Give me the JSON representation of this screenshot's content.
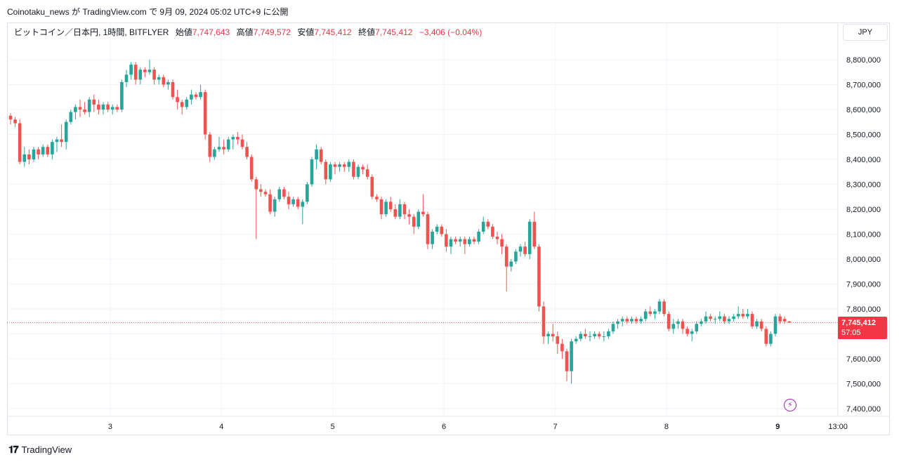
{
  "caption": "Coinotaku_news が TradingView.com で 9月 09, 2024 05:02 UTC+9 に公開",
  "legend": {
    "symbol": "ビットコイン／日本円, 1時間, BITFLYER",
    "open_label": "始値",
    "open": "7,747,643",
    "high_label": "高値",
    "high": "7,749,572",
    "low_label": "安値",
    "low": "7,745,412",
    "close_label": "終値",
    "close": "7,745,412",
    "change": "−3,406 (−0.04%)"
  },
  "currency": "JPY",
  "price_tag": {
    "price": "7,745,412",
    "countdown": "57:05"
  },
  "footer": {
    "brand": "TradingView"
  },
  "colors": {
    "up": "#26a69a",
    "down": "#ef5350",
    "grid": "#f0f3fa",
    "text": "#131722"
  },
  "chart_data": {
    "type": "candlestick",
    "interval": "1h",
    "ylim": [
      7360000,
      8870000
    ],
    "y_ticks": [
      7400000,
      7500000,
      7600000,
      7700000,
      7800000,
      7900000,
      8000000,
      8100000,
      8200000,
      8300000,
      8400000,
      8500000,
      8600000,
      8700000,
      8800000
    ],
    "y_tick_labels": [
      "7,400,000",
      "7,500,000",
      "7,600,000",
      "7,700,000",
      "7,800,000",
      "7,900,000",
      "8,000,000",
      "8,100,000",
      "8,200,000",
      "8,300,000",
      "8,400,000",
      "8,500,000",
      "8,600,000",
      "8,700,000",
      "8,800,000"
    ],
    "x_ticks": [
      {
        "label": "3",
        "bar": 21.5,
        "bold": false
      },
      {
        "label": "4",
        "bar": 45.5,
        "bold": false
      },
      {
        "label": "5",
        "bar": 69.5,
        "bold": false
      },
      {
        "label": "6",
        "bar": 93.5,
        "bold": false
      },
      {
        "label": "7",
        "bar": 117.5,
        "bold": false
      },
      {
        "label": "8",
        "bar": 141.5,
        "bold": false
      },
      {
        "label": "9",
        "bar": 165.5,
        "bold": true
      },
      {
        "label": "13:00",
        "bar": 178.5,
        "bold": false
      }
    ],
    "last_price": 7745412,
    "ohlc": [
      [
        8575000,
        8585000,
        8540000,
        8560000
      ],
      [
        8560000,
        8570000,
        8530000,
        8545000
      ],
      [
        8545000,
        8560000,
        8380000,
        8390000
      ],
      [
        8390000,
        8450000,
        8370000,
        8420000
      ],
      [
        8420000,
        8440000,
        8380000,
        8400000
      ],
      [
        8400000,
        8450000,
        8390000,
        8440000
      ],
      [
        8440000,
        8450000,
        8400000,
        8420000
      ],
      [
        8420000,
        8460000,
        8410000,
        8450000
      ],
      [
        8450000,
        8460000,
        8410000,
        8420000
      ],
      [
        8420000,
        8480000,
        8400000,
        8470000
      ],
      [
        8470000,
        8490000,
        8430000,
        8480000
      ],
      [
        8480000,
        8540000,
        8450000,
        8470000
      ],
      [
        8470000,
        8560000,
        8440000,
        8550000
      ],
      [
        8550000,
        8600000,
        8540000,
        8590000
      ],
      [
        8590000,
        8620000,
        8560000,
        8610000
      ],
      [
        8610000,
        8640000,
        8570000,
        8600000
      ],
      [
        8600000,
        8630000,
        8580000,
        8590000
      ],
      [
        8590000,
        8650000,
        8570000,
        8640000
      ],
      [
        8640000,
        8660000,
        8590000,
        8620000
      ],
      [
        8620000,
        8640000,
        8580000,
        8600000
      ],
      [
        8600000,
        8630000,
        8580000,
        8620000
      ],
      [
        8620000,
        8630000,
        8590000,
        8600000
      ],
      [
        8600000,
        8620000,
        8580000,
        8610000
      ],
      [
        8610000,
        8620000,
        8590000,
        8600000
      ],
      [
        8600000,
        8720000,
        8590000,
        8710000
      ],
      [
        8710000,
        8760000,
        8690000,
        8740000
      ],
      [
        8740000,
        8790000,
        8720000,
        8780000
      ],
      [
        8780000,
        8790000,
        8700000,
        8720000
      ],
      [
        8720000,
        8770000,
        8700000,
        8760000
      ],
      [
        8760000,
        8770000,
        8730000,
        8750000
      ],
      [
        8750000,
        8800000,
        8740000,
        8760000
      ],
      [
        8760000,
        8770000,
        8700000,
        8720000
      ],
      [
        8720000,
        8740000,
        8700000,
        8730000
      ],
      [
        8730000,
        8740000,
        8690000,
        8700000
      ],
      [
        8700000,
        8720000,
        8680000,
        8710000
      ],
      [
        8710000,
        8720000,
        8640000,
        8650000
      ],
      [
        8650000,
        8680000,
        8600000,
        8630000
      ],
      [
        8630000,
        8640000,
        8580000,
        8610000
      ],
      [
        8610000,
        8650000,
        8600000,
        8640000
      ],
      [
        8640000,
        8680000,
        8620000,
        8660000
      ],
      [
        8660000,
        8670000,
        8640000,
        8650000
      ],
      [
        8650000,
        8700000,
        8640000,
        8670000
      ],
      [
        8670000,
        8680000,
        8480000,
        8500000
      ],
      [
        8500000,
        8510000,
        8390000,
        8410000
      ],
      [
        8410000,
        8450000,
        8400000,
        8440000
      ],
      [
        8440000,
        8490000,
        8430000,
        8450000
      ],
      [
        8450000,
        8480000,
        8420000,
        8440000
      ],
      [
        8440000,
        8490000,
        8430000,
        8480000
      ],
      [
        8480000,
        8500000,
        8440000,
        8490000
      ],
      [
        8490000,
        8510000,
        8460000,
        8480000
      ],
      [
        8480000,
        8500000,
        8440000,
        8450000
      ],
      [
        8450000,
        8470000,
        8400000,
        8410000
      ],
      [
        8410000,
        8420000,
        8310000,
        8320000
      ],
      [
        8320000,
        8330000,
        8080000,
        8280000
      ],
      [
        8280000,
        8300000,
        8250000,
        8270000
      ],
      [
        8270000,
        8280000,
        8250000,
        8260000
      ],
      [
        8260000,
        8280000,
        8180000,
        8190000
      ],
      [
        8190000,
        8250000,
        8170000,
        8240000
      ],
      [
        8240000,
        8290000,
        8230000,
        8280000
      ],
      [
        8280000,
        8290000,
        8240000,
        8250000
      ],
      [
        8250000,
        8270000,
        8200000,
        8220000
      ],
      [
        8220000,
        8250000,
        8210000,
        8240000
      ],
      [
        8240000,
        8250000,
        8200000,
        8210000
      ],
      [
        8210000,
        8240000,
        8140000,
        8230000
      ],
      [
        8230000,
        8310000,
        8220000,
        8300000
      ],
      [
        8300000,
        8410000,
        8290000,
        8400000
      ],
      [
        8400000,
        8460000,
        8360000,
        8440000
      ],
      [
        8440000,
        8450000,
        8380000,
        8390000
      ],
      [
        8390000,
        8400000,
        8300000,
        8320000
      ],
      [
        8320000,
        8390000,
        8310000,
        8380000
      ],
      [
        8380000,
        8390000,
        8340000,
        8370000
      ],
      [
        8370000,
        8390000,
        8350000,
        8380000
      ],
      [
        8380000,
        8390000,
        8350000,
        8370000
      ],
      [
        8370000,
        8400000,
        8350000,
        8390000
      ],
      [
        8390000,
        8400000,
        8320000,
        8330000
      ],
      [
        8330000,
        8380000,
        8320000,
        8370000
      ],
      [
        8370000,
        8380000,
        8340000,
        8360000
      ],
      [
        8360000,
        8380000,
        8320000,
        8330000
      ],
      [
        8330000,
        8340000,
        8240000,
        8250000
      ],
      [
        8250000,
        8260000,
        8230000,
        8240000
      ],
      [
        8240000,
        8250000,
        8160000,
        8180000
      ],
      [
        8180000,
        8240000,
        8170000,
        8230000
      ],
      [
        8230000,
        8250000,
        8190000,
        8200000
      ],
      [
        8200000,
        8220000,
        8160000,
        8170000
      ],
      [
        8170000,
        8240000,
        8160000,
        8220000
      ],
      [
        8220000,
        8230000,
        8160000,
        8180000
      ],
      [
        8180000,
        8200000,
        8140000,
        8170000
      ],
      [
        8170000,
        8180000,
        8100000,
        8130000
      ],
      [
        8130000,
        8200000,
        8120000,
        8190000
      ],
      [
        8190000,
        8260000,
        8170000,
        8180000
      ],
      [
        8180000,
        8190000,
        8040000,
        8060000
      ],
      [
        8060000,
        8120000,
        8040000,
        8110000
      ],
      [
        8110000,
        8140000,
        8100000,
        8130000
      ],
      [
        8130000,
        8140000,
        8090000,
        8100000
      ],
      [
        8100000,
        8120000,
        8030000,
        8050000
      ],
      [
        8050000,
        8090000,
        8020000,
        8080000
      ],
      [
        8080000,
        8090000,
        8060000,
        8070000
      ],
      [
        8070000,
        8090000,
        8050000,
        8080000
      ],
      [
        8080000,
        8090000,
        8020000,
        8060000
      ],
      [
        8060000,
        8090000,
        8050000,
        8080000
      ],
      [
        8080000,
        8090000,
        8060000,
        8070000
      ],
      [
        8070000,
        8120000,
        8060000,
        8110000
      ],
      [
        8110000,
        8170000,
        8100000,
        8150000
      ],
      [
        8150000,
        8160000,
        8120000,
        8130000
      ],
      [
        8130000,
        8140000,
        8080000,
        8090000
      ],
      [
        8090000,
        8110000,
        8060000,
        8080000
      ],
      [
        8080000,
        8100000,
        8020000,
        8050000
      ],
      [
        8050000,
        8060000,
        7870000,
        7970000
      ],
      [
        7970000,
        8000000,
        7950000,
        7990000
      ],
      [
        7990000,
        8040000,
        7980000,
        8030000
      ],
      [
        8030000,
        8060000,
        8010000,
        8050000
      ],
      [
        8050000,
        8070000,
        8010000,
        8020000
      ],
      [
        8020000,
        8160000,
        8000000,
        8150000
      ],
      [
        8150000,
        8190000,
        8040000,
        8050000
      ],
      [
        8050000,
        8060000,
        7790000,
        7810000
      ],
      [
        7810000,
        7830000,
        7660000,
        7690000
      ],
      [
        7690000,
        7710000,
        7660000,
        7700000
      ],
      [
        7700000,
        7740000,
        7670000,
        7690000
      ],
      [
        7690000,
        7710000,
        7620000,
        7660000
      ],
      [
        7660000,
        7680000,
        7600000,
        7630000
      ],
      [
        7630000,
        7640000,
        7510000,
        7550000
      ],
      [
        7550000,
        7680000,
        7500000,
        7670000
      ],
      [
        7670000,
        7690000,
        7660000,
        7680000
      ],
      [
        7680000,
        7710000,
        7670000,
        7700000
      ],
      [
        7700000,
        7720000,
        7680000,
        7690000
      ],
      [
        7690000,
        7710000,
        7670000,
        7690000
      ],
      [
        7690000,
        7710000,
        7680000,
        7700000
      ],
      [
        7700000,
        7710000,
        7680000,
        7690000
      ],
      [
        7690000,
        7710000,
        7670000,
        7690000
      ],
      [
        7690000,
        7720000,
        7680000,
        7710000
      ],
      [
        7710000,
        7750000,
        7700000,
        7740000
      ],
      [
        7740000,
        7760000,
        7720000,
        7750000
      ],
      [
        7750000,
        7770000,
        7730000,
        7760000
      ],
      [
        7760000,
        7770000,
        7740000,
        7750000
      ],
      [
        7750000,
        7770000,
        7740000,
        7760000
      ],
      [
        7760000,
        7770000,
        7740000,
        7750000
      ],
      [
        7750000,
        7770000,
        7740000,
        7760000
      ],
      [
        7760000,
        7800000,
        7750000,
        7790000
      ],
      [
        7790000,
        7810000,
        7770000,
        7780000
      ],
      [
        7780000,
        7800000,
        7760000,
        7790000
      ],
      [
        7790000,
        7840000,
        7780000,
        7830000
      ],
      [
        7830000,
        7840000,
        7770000,
        7780000
      ],
      [
        7780000,
        7790000,
        7710000,
        7720000
      ],
      [
        7720000,
        7760000,
        7700000,
        7740000
      ],
      [
        7740000,
        7760000,
        7720000,
        7750000
      ],
      [
        7750000,
        7760000,
        7700000,
        7720000
      ],
      [
        7720000,
        7730000,
        7690000,
        7700000
      ],
      [
        7700000,
        7720000,
        7670000,
        7710000
      ],
      [
        7710000,
        7750000,
        7700000,
        7740000
      ],
      [
        7740000,
        7760000,
        7730000,
        7750000
      ],
      [
        7750000,
        7790000,
        7740000,
        7770000
      ],
      [
        7770000,
        7780000,
        7750000,
        7760000
      ],
      [
        7760000,
        7770000,
        7740000,
        7760000
      ],
      [
        7760000,
        7790000,
        7750000,
        7770000
      ],
      [
        7770000,
        7780000,
        7740000,
        7750000
      ],
      [
        7750000,
        7770000,
        7740000,
        7760000
      ],
      [
        7760000,
        7780000,
        7750000,
        7770000
      ],
      [
        7770000,
        7810000,
        7760000,
        7780000
      ],
      [
        7780000,
        7800000,
        7760000,
        7770000
      ],
      [
        7770000,
        7800000,
        7760000,
        7780000
      ],
      [
        7780000,
        7790000,
        7720000,
        7730000
      ],
      [
        7730000,
        7760000,
        7720000,
        7750000
      ],
      [
        7750000,
        7760000,
        7710000,
        7720000
      ],
      [
        7720000,
        7730000,
        7650000,
        7660000
      ],
      [
        7660000,
        7710000,
        7650000,
        7700000
      ],
      [
        7700000,
        7780000,
        7690000,
        7770000
      ],
      [
        7770000,
        7780000,
        7740000,
        7750000
      ],
      [
        7760000,
        7770000,
        7740000,
        7750000
      ],
      [
        7750000,
        7752000,
        7744000,
        7745412
      ]
    ]
  }
}
